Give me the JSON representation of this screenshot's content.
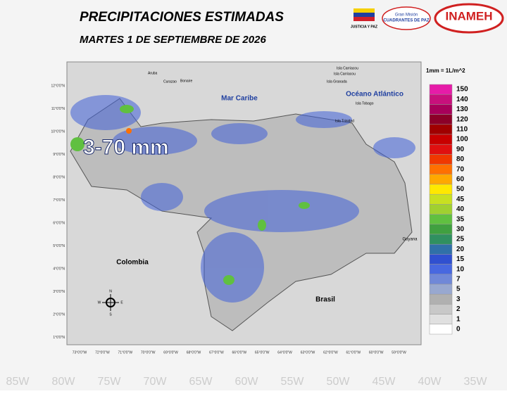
{
  "header": {
    "title": "PRECIPITACIONES ESTIMADAS",
    "subtitle": "MARTES 1 DE SEPTIEMBRE DE 2026"
  },
  "logos": [
    "JUSTICIA Y PAZ",
    "Gran Misión",
    "CUADRANTES DE PAZ",
    "INAMEH"
  ],
  "map": {
    "seas": [
      "Mar Caribe",
      "Océano Atlántico"
    ],
    "countries": [
      "Colombia",
      "Brasil",
      "Guyana"
    ],
    "places": [
      "Aruba",
      "Curazao",
      "Bonaire",
      "Isla Carriacou",
      "Isla Carriacou",
      "Isla Granada",
      "Isla Tobago",
      "Isla Trinidad"
    ],
    "range_label": "3-70 mm",
    "lat_labels": [
      "12°0'0\"N",
      "11°0'0\"N",
      "10°0'0\"N",
      "9°0'0\"N",
      "8°0'0\"N",
      "7°0'0\"N",
      "6°0'0\"N",
      "5°0'0\"N",
      "4°0'0\"N",
      "3°0'0\"N",
      "2°0'0\"N",
      "1°0'0\"N"
    ],
    "lon_labels": [
      "73°0'0\"W",
      "72°0'0\"W",
      "71°0'0\"W",
      "70°0'0\"W",
      "69°0'0\"W",
      "68°0'0\"W",
      "67°0'0\"W",
      "66°0'0\"W",
      "65°0'0\"W",
      "64°0'0\"W",
      "63°0'0\"W",
      "62°0'0\"W",
      "61°0'0\"W",
      "60°0'0\"W",
      "59°0'0\"W"
    ],
    "compass": [
      "N",
      "W",
      "E",
      "S"
    ]
  },
  "legend": {
    "unit_note": "1mm = 1L/m^2",
    "items": [
      {
        "value": 150,
        "color": "#e61ca8"
      },
      {
        "value": 140,
        "color": "#c8107c"
      },
      {
        "value": 130,
        "color": "#a8005a"
      },
      {
        "value": 120,
        "color": "#8c0028"
      },
      {
        "value": 110,
        "color": "#a00000"
      },
      {
        "value": 100,
        "color": "#c80000"
      },
      {
        "value": 90,
        "color": "#e01010"
      },
      {
        "value": 80,
        "color": "#f03800"
      },
      {
        "value": 70,
        "color": "#ff7000"
      },
      {
        "value": 60,
        "color": "#ffa800"
      },
      {
        "value": 50,
        "color": "#ffe800"
      },
      {
        "value": 45,
        "color": "#c8e020"
      },
      {
        "value": 40,
        "color": "#a0d030"
      },
      {
        "value": 35,
        "color": "#60c040"
      },
      {
        "value": 30,
        "color": "#40a040"
      },
      {
        "value": 25,
        "color": "#309060"
      },
      {
        "value": 20,
        "color": "#3070a8"
      },
      {
        "value": 15,
        "color": "#3050d0"
      },
      {
        "value": 10,
        "color": "#4868e0"
      },
      {
        "value": 7,
        "color": "#7088d8"
      },
      {
        "value": 5,
        "color": "#98a8d0"
      },
      {
        "value": 3,
        "color": "#b0b0b0"
      },
      {
        "value": 2,
        "color": "#c8c8c8"
      },
      {
        "value": 1,
        "color": "#e0e0e0"
      },
      {
        "value": 0,
        "color": "#ffffff"
      }
    ]
  },
  "background_labels": [
    "85W",
    "80W",
    "75W",
    "70W",
    "65W",
    "60W",
    "55W",
    "50W",
    "45W",
    "40W",
    "35W"
  ]
}
